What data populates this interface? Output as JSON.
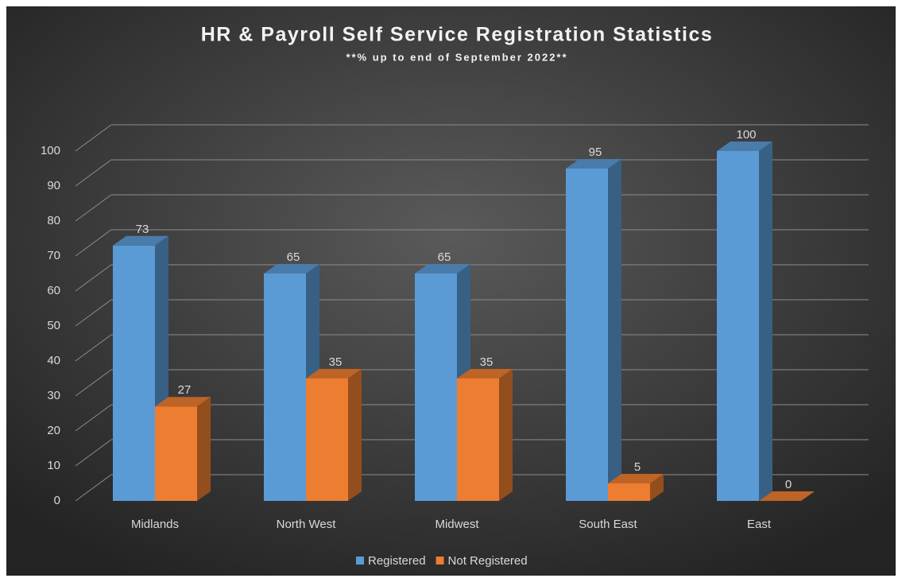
{
  "chart_data": {
    "type": "bar3d",
    "title": "HR & Payroll Self Service Registration Statistics",
    "subtitle": "**% up to end of September 2022**",
    "categories": [
      "Midlands",
      "North West",
      "Midwest",
      "South East",
      "East"
    ],
    "series": [
      {
        "name": "Registered",
        "color": "#5b9bd5",
        "values": [
          73,
          65,
          65,
          95,
          100
        ]
      },
      {
        "name": "Not Registered",
        "color": "#ed7d31",
        "values": [
          27,
          35,
          35,
          5,
          0
        ]
      }
    ],
    "ylim": [
      0,
      100
    ],
    "yticks": [
      0,
      10,
      20,
      30,
      40,
      50,
      60,
      70,
      80,
      90,
      100
    ],
    "grid": true,
    "legend": "bottom"
  }
}
